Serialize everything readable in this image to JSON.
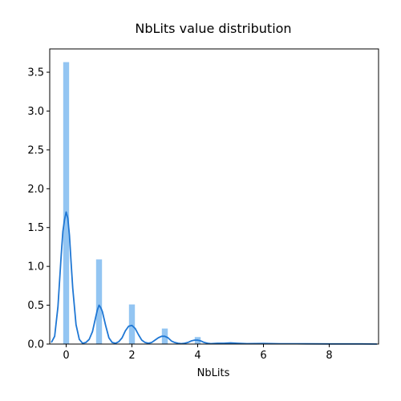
{
  "chart_data": {
    "type": "bar",
    "title": "NbLits value distribution",
    "xlabel": "NbLits",
    "ylabel": "",
    "xlim": [
      -0.5,
      9.5
    ],
    "ylim": [
      0,
      3.8
    ],
    "grid": false,
    "x_ticks": [
      0,
      2,
      4,
      6,
      8
    ],
    "x_tick_labels": [
      "0",
      "2",
      "4",
      "6",
      "8"
    ],
    "y_ticks": [
      0.0,
      0.5,
      1.0,
      1.5,
      2.0,
      2.5,
      3.0,
      3.5
    ],
    "y_tick_labels": [
      "0.0",
      "0.5",
      "1.0",
      "1.5",
      "2.0",
      "2.5",
      "3.0",
      "3.5"
    ],
    "histogram": {
      "bin_width": 0.18,
      "color": "#93c5f2",
      "bars": [
        {
          "x": 0,
          "density": 3.63
        },
        {
          "x": 1,
          "density": 1.09
        },
        {
          "x": 2,
          "density": 0.51
        },
        {
          "x": 3,
          "density": 0.2
        },
        {
          "x": 4,
          "density": 0.09
        }
      ]
    },
    "kde": {
      "color": "#1f77d4",
      "x": [
        -0.45,
        -0.35,
        -0.25,
        -0.15,
        -0.1,
        -0.05,
        0.0,
        0.05,
        0.1,
        0.15,
        0.2,
        0.3,
        0.4,
        0.5,
        0.6,
        0.7,
        0.8,
        0.9,
        0.95,
        1.0,
        1.05,
        1.1,
        1.2,
        1.3,
        1.4,
        1.5,
        1.6,
        1.7,
        1.8,
        1.9,
        2.0,
        2.1,
        2.2,
        2.3,
        2.4,
        2.5,
        2.6,
        2.7,
        2.8,
        2.9,
        3.0,
        3.1,
        3.2,
        3.3,
        3.4,
        3.5,
        3.6,
        3.7,
        3.8,
        3.9,
        4.0,
        4.1,
        4.2,
        4.3,
        4.4,
        4.6,
        4.8,
        5.0,
        5.2,
        5.5,
        6.0,
        6.5,
        7.0,
        8.0,
        9.0,
        9.45
      ],
      "y": [
        0.02,
        0.1,
        0.48,
        1.15,
        1.45,
        1.6,
        1.7,
        1.62,
        1.4,
        1.05,
        0.72,
        0.25,
        0.06,
        0.01,
        0.02,
        0.06,
        0.16,
        0.35,
        0.44,
        0.5,
        0.47,
        0.42,
        0.24,
        0.08,
        0.02,
        0.01,
        0.03,
        0.08,
        0.17,
        0.23,
        0.24,
        0.2,
        0.12,
        0.05,
        0.02,
        0.01,
        0.02,
        0.05,
        0.08,
        0.1,
        0.1,
        0.08,
        0.04,
        0.02,
        0.01,
        0.005,
        0.01,
        0.02,
        0.04,
        0.05,
        0.05,
        0.04,
        0.02,
        0.01,
        0.005,
        0.01,
        0.01,
        0.015,
        0.01,
        0.005,
        0.008,
        0.004,
        0.004,
        0.002,
        0.002,
        0.0
      ]
    }
  }
}
